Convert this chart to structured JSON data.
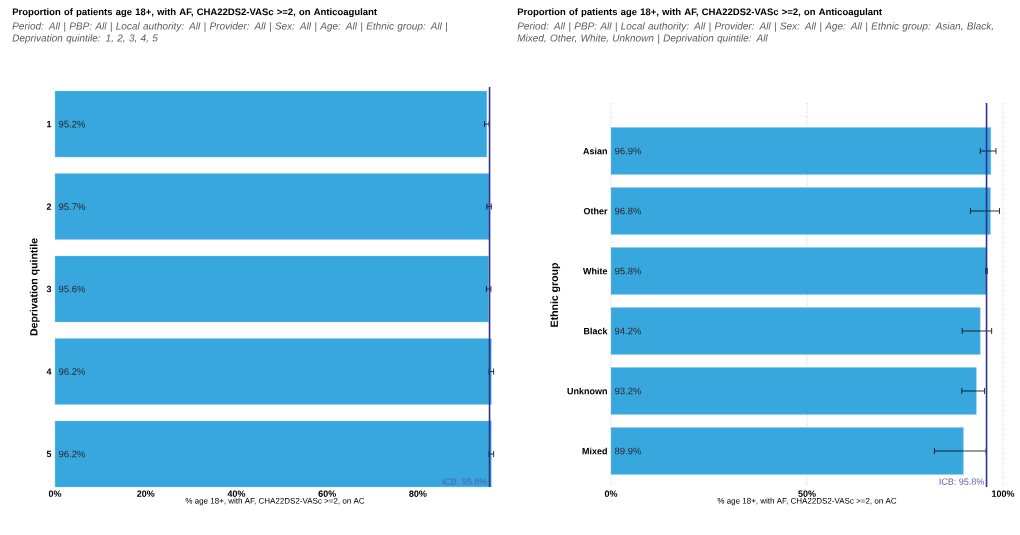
{
  "chart_data": [
    {
      "type": "bar",
      "orientation": "horizontal",
      "title": "Proportion of patients age 18+, with AF, CHA22DS2-VASc >=2, on Anticoagulant",
      "subtitle": "Period: All | PBP: All | Local authority: All | Provider: All | Sex: All | Age: All | Ethnic group: All | Deprivation quintile: 1, 2, 3, 4, 5",
      "xlabel": "% age 18+, with AF, CHA22DS2-VASc >=2, on AC",
      "ylabel": "Deprivation quintile",
      "categories": [
        "1",
        "2",
        "3",
        "4",
        "5"
      ],
      "values": [
        95.2,
        95.7,
        95.6,
        96.2,
        96.2
      ],
      "value_labels": [
        "95.2%",
        "95.7%",
        "95.6%",
        "96.2%",
        "96.2%"
      ],
      "errors": [
        [
          94.7,
          95.7
        ],
        [
          95.2,
          96.2
        ],
        [
          95.1,
          96.1
        ],
        [
          95.7,
          96.7
        ],
        [
          95.7,
          96.7
        ]
      ],
      "color": "#38a7de",
      "xlim": [
        0,
        97
      ],
      "xticks": [
        {
          "value": 0,
          "label": "0%"
        },
        {
          "value": 20,
          "label": "20%"
        },
        {
          "value": 40,
          "label": "40%"
        },
        {
          "value": 60,
          "label": "60%"
        },
        {
          "value": 80,
          "label": "80%"
        }
      ],
      "grid": false,
      "ref_lines": [
        {
          "axis": "x",
          "value": 95.8,
          "label": "ICB: 95.8%",
          "color": "#2e3192"
        }
      ]
    },
    {
      "type": "bar",
      "orientation": "horizontal",
      "title": "Proportion of patients age 18+, with AF, CHA22DS2-VASc >=2, on Anticoagulant",
      "subtitle": "Period: All | PBP: All | Local authority: All | Provider: All | Sex: All | Age: All | Ethnic group: Asian, Black, Mixed, Other, White, Unknown | Deprivation quintile: All",
      "xlabel": "% age 18+, with AF, CHA22DS2-VASc >=2, on AC",
      "ylabel": "Ethnic group",
      "categories": [
        "Asian",
        "Other",
        "White",
        "Black",
        "Unknown",
        "Mixed"
      ],
      "values": [
        96.9,
        96.8,
        95.8,
        94.2,
        93.2,
        89.9
      ],
      "value_labels": [
        "96.9%",
        "96.8%",
        "95.8%",
        "94.2%",
        "93.2%",
        "89.9%"
      ],
      "errors": [
        [
          94.2,
          98.2
        ],
        [
          91.7,
          99.1
        ],
        [
          95.6,
          96.0
        ],
        [
          89.6,
          97.1
        ],
        [
          89.5,
          95.3
        ],
        [
          82.5,
          95.7
        ]
      ],
      "color": "#38a7de",
      "xlim": [
        0,
        100
      ],
      "xticks": [
        {
          "value": 0,
          "label": "0%"
        },
        {
          "value": 50,
          "label": "50%"
        },
        {
          "value": 100,
          "label": "100%"
        }
      ],
      "grid": "x",
      "ref_lines": [
        {
          "axis": "x",
          "value": 95.8,
          "label": "ICB: 95.8%",
          "color": "#2e3192"
        }
      ]
    }
  ]
}
